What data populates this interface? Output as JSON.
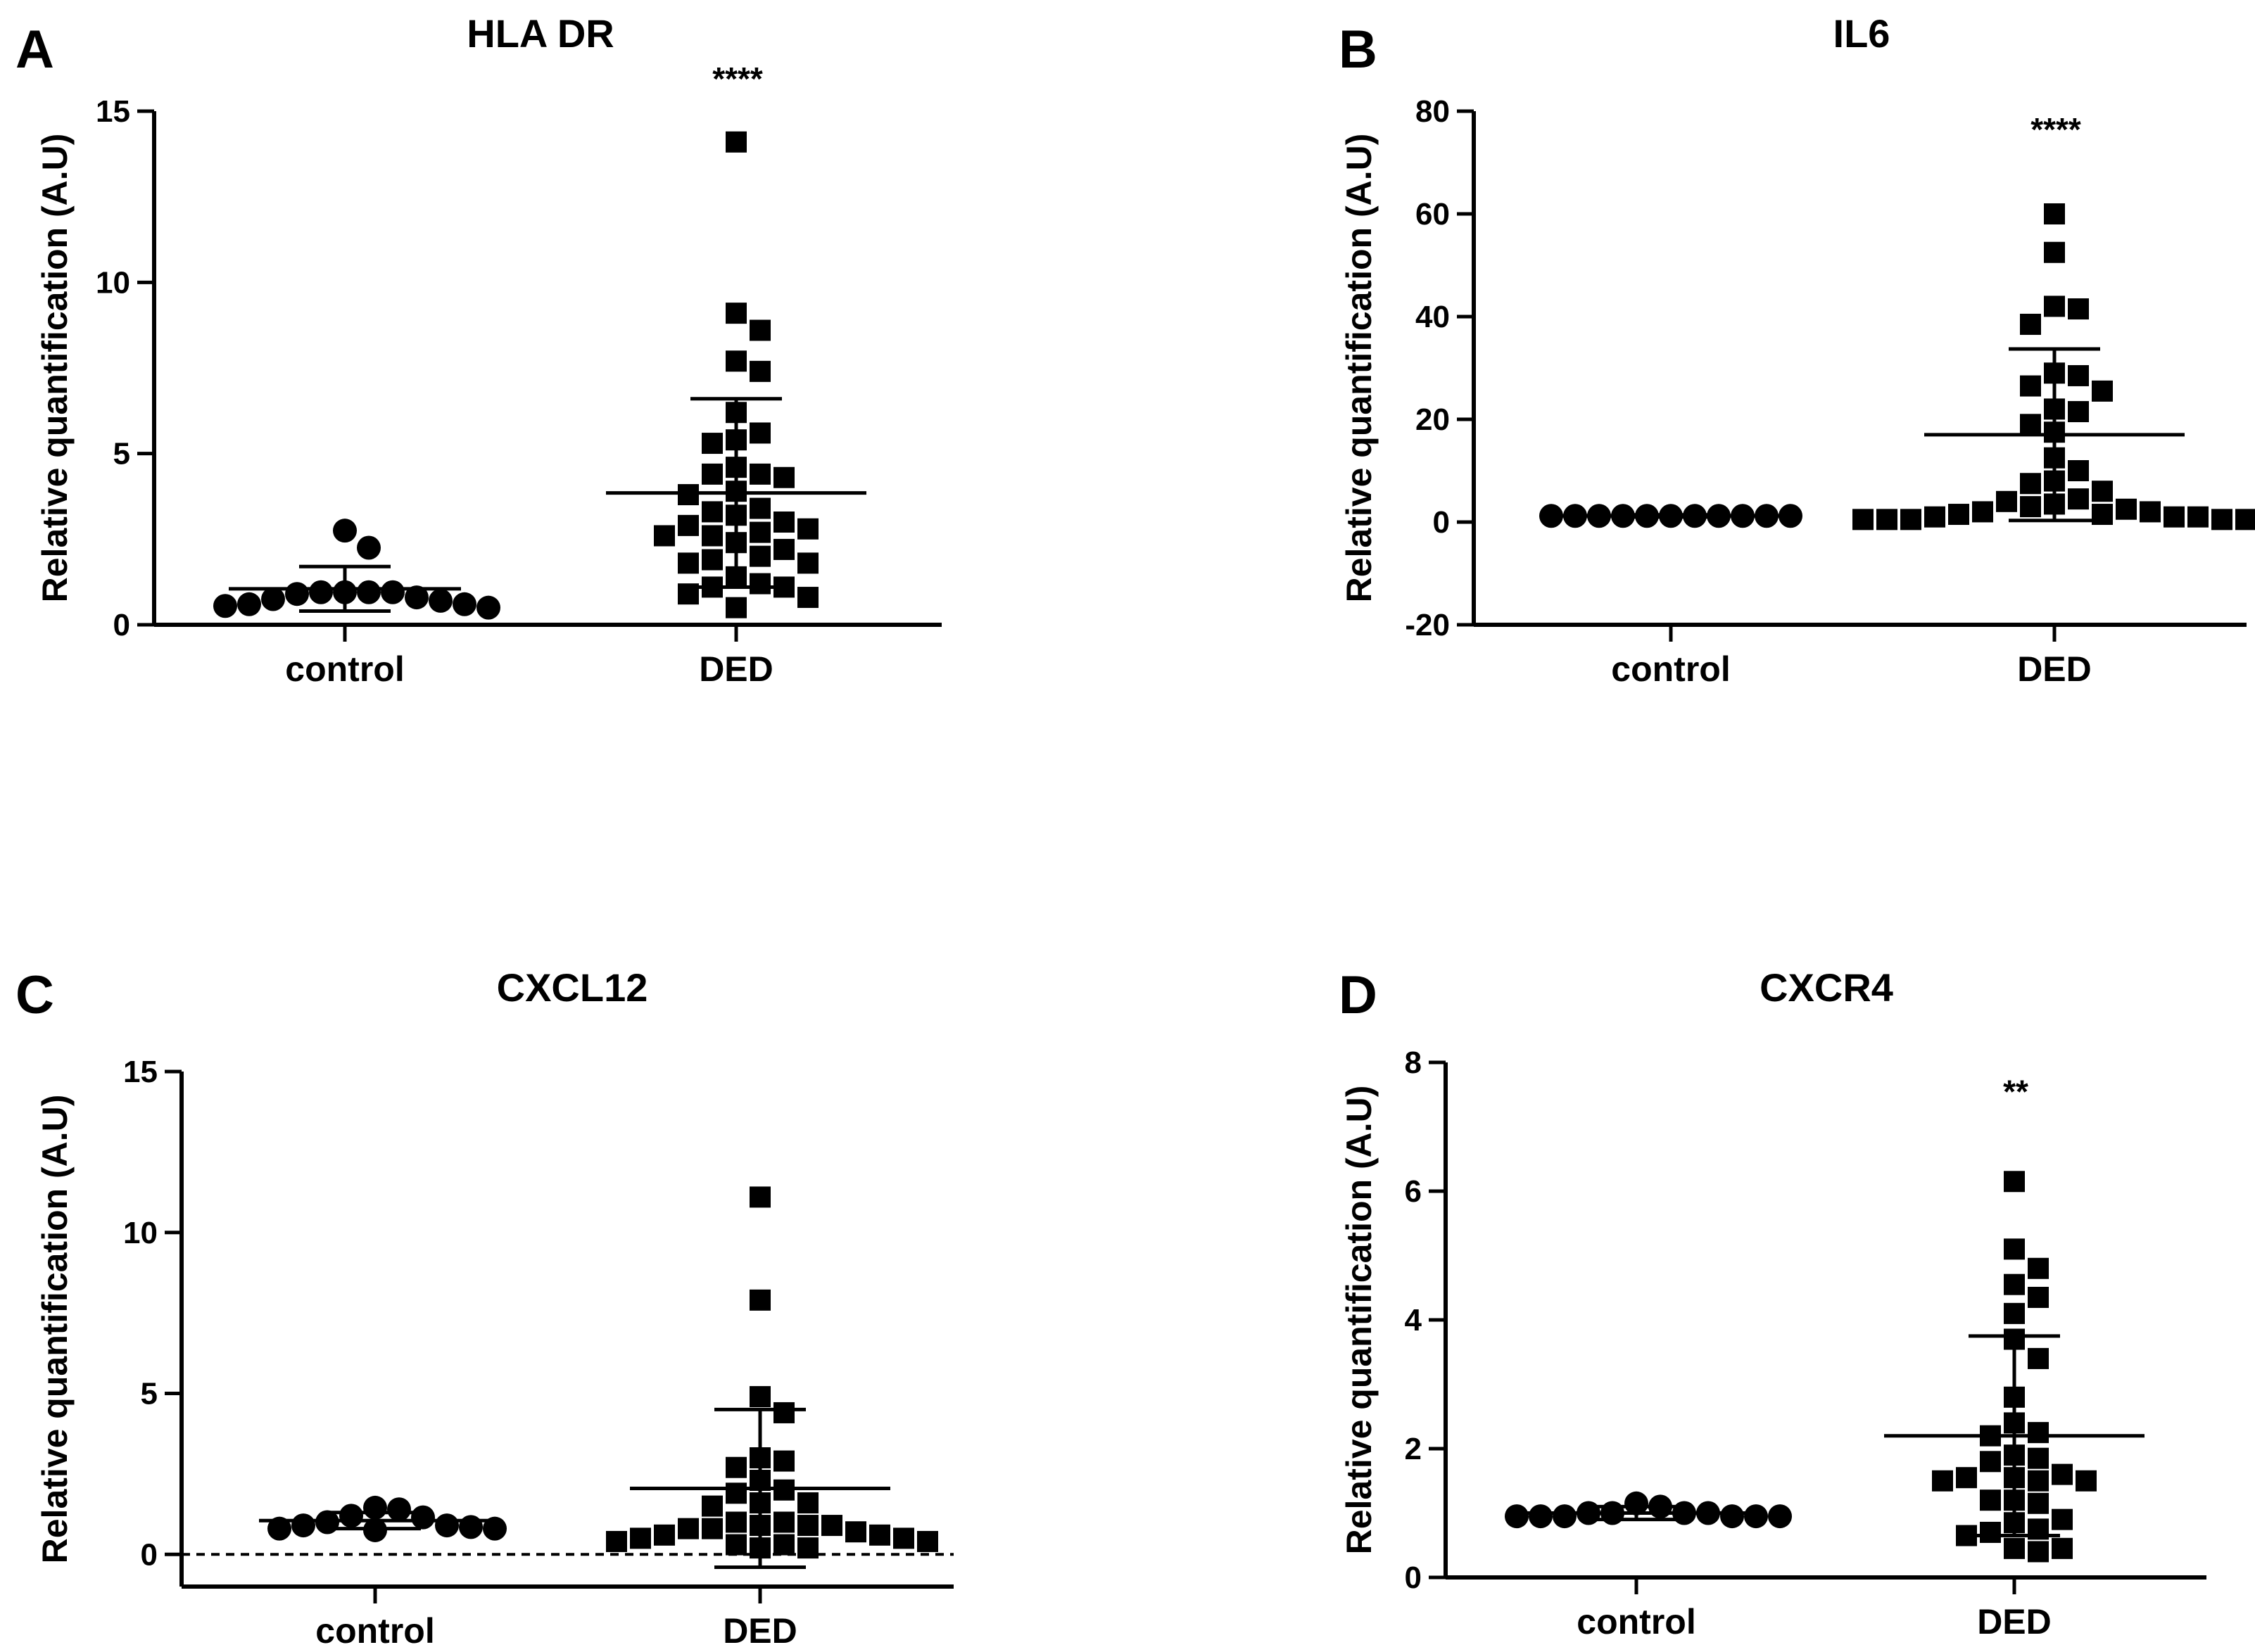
{
  "figure": {
    "colors": {
      "ink": "#000000",
      "background": "#ffffff"
    },
    "panels": [
      {
        "id": "A",
        "letter": "A",
        "chart_data": {
          "type": "scatter",
          "title": "HLA DR",
          "xlabel": "",
          "ylabel": "Relative quantification (A.U)",
          "categories": [
            "control",
            "DED"
          ],
          "ylim": [
            0,
            15
          ],
          "yticks": [
            0,
            5,
            10,
            15
          ],
          "ytick_labels": [
            "0",
            "5",
            "10",
            "15"
          ],
          "zero_line": false,
          "significance": "****",
          "groups": [
            {
              "name": "control",
              "marker": "circle",
              "mean": 1.05,
              "sd": 0.65,
              "values": [
                0.95,
                0.95,
                0.8,
                0.55,
                0.6,
                0.7,
                0.5,
                0.6,
                0.75,
                0.9,
                0.95,
                0.95,
                2.75,
                2.25
              ]
            },
            {
              "name": "DED",
              "marker": "square",
              "mean": 3.85,
              "sd": 2.75,
              "values": [
                14.1,
                9.1,
                8.6,
                7.4,
                7.7,
                6.2,
                5.6,
                5.4,
                5.3,
                4.6,
                4.4,
                4.4,
                4.3,
                3.9,
                3.8,
                3.4,
                3.3,
                3.2,
                3.0,
                2.9,
                2.8,
                2.7,
                2.6,
                2.6,
                2.4,
                2.2,
                2.0,
                1.9,
                1.8,
                1.8,
                1.4,
                1.2,
                1.1,
                1.1,
                0.9,
                0.8,
                0.5
              ]
            }
          ]
        }
      },
      {
        "id": "B",
        "letter": "B",
        "chart_data": {
          "type": "scatter",
          "title": "IL6",
          "xlabel": "",
          "ylabel": "Relative quantification (A.U)",
          "categories": [
            "control",
            "DED"
          ],
          "ylim": [
            -20,
            80
          ],
          "yticks": [
            -20,
            0,
            20,
            40,
            60,
            80
          ],
          "ytick_labels": [
            "-20",
            "0",
            "20",
            "40",
            "60",
            "80"
          ],
          "zero_line": false,
          "significance": "****",
          "groups": [
            {
              "name": "control",
              "marker": "circle",
              "mean": 1.2,
              "sd": 0.2,
              "values": [
                1.2,
                1.2,
                1.2,
                1.2,
                1.2,
                1.2,
                1.2,
                1.2,
                1.2,
                1.2,
                1.2
              ]
            },
            {
              "name": "DED",
              "marker": "square",
              "mean": 17,
              "sd": 16.7,
              "values": [
                60,
                52.5,
                42,
                41.5,
                38.5,
                29,
                28.5,
                26.5,
                25.5,
                22,
                21.5,
                19,
                17.5,
                12.5,
                10,
                8,
                7.5,
                6,
                4.5,
                4,
                3.5,
                3,
                2.5,
                2,
                2,
                1.5,
                1.5,
                1,
                1,
                1,
                0.5,
                0.5,
                0.5,
                0.5,
                0.5
              ]
            }
          ]
        }
      },
      {
        "id": "C",
        "letter": "C",
        "chart_data": {
          "type": "scatter",
          "title": "CXCL12",
          "xlabel": "",
          "ylabel": "Relative quantification (A.U)",
          "categories": [
            "control",
            "DED"
          ],
          "ylim": [
            -1,
            15
          ],
          "yticks": [
            0,
            5,
            10,
            15
          ],
          "ytick_labels": [
            "0",
            "5",
            "10",
            "15"
          ],
          "zero_line": true,
          "significance": "",
          "groups": [
            {
              "name": "control",
              "marker": "circle",
              "mean": 1.05,
              "sd": 0.25,
              "values": [
                1.45,
                1.2,
                1.0,
                0.9,
                0.85,
                0.8,
                0.75,
                0.8,
                0.9,
                1.15,
                1.4
              ]
            },
            {
              "name": "DED",
              "marker": "square",
              "mean": 2.05,
              "sd": 2.45,
              "values": [
                11.1,
                7.9,
                4.9,
                4.4,
                3.0,
                2.9,
                2.7,
                2.3,
                2.0,
                1.9,
                1.6,
                1.6,
                1.5,
                1.0,
                1.0,
                0.9,
                0.9,
                0.9,
                0.8,
                0.8,
                0.7,
                0.6,
                0.6,
                0.5,
                0.5,
                0.4,
                0.4,
                0.3,
                0.3,
                0.2,
                0.2
              ]
            }
          ]
        }
      },
      {
        "id": "D",
        "letter": "D",
        "chart_data": {
          "type": "scatter",
          "title": "CXCR4",
          "xlabel": "",
          "ylabel": "Relative quantification (A.U)",
          "categories": [
            "control",
            "DED"
          ],
          "ylim": [
            0,
            8
          ],
          "yticks": [
            0,
            2,
            4,
            6,
            8
          ],
          "ytick_labels": [
            "0",
            "2",
            "4",
            "6",
            "8"
          ],
          "zero_line": false,
          "significance": "**",
          "groups": [
            {
              "name": "control",
              "marker": "circle",
              "mean": 1.0,
              "sd": 0.1,
              "values": [
                1.1,
                1.0,
                1.0,
                0.95,
                0.95,
                0.95,
                0.95,
                0.95,
                0.95,
                1.0,
                1.0,
                1.15
              ]
            },
            {
              "name": "DED",
              "marker": "square",
              "mean": 2.2,
              "sd": 1.55,
              "values": [
                6.15,
                5.1,
                4.8,
                4.55,
                4.35,
                4.1,
                3.7,
                3.4,
                2.8,
                2.4,
                2.25,
                2.2,
                1.9,
                1.85,
                1.8,
                1.6,
                1.55,
                1.55,
                1.5,
                1.5,
                1.5,
                1.2,
                1.2,
                1.15,
                0.9,
                0.85,
                0.75,
                0.7,
                0.65,
                0.45,
                0.45,
                0.4
              ]
            }
          ]
        }
      }
    ]
  }
}
